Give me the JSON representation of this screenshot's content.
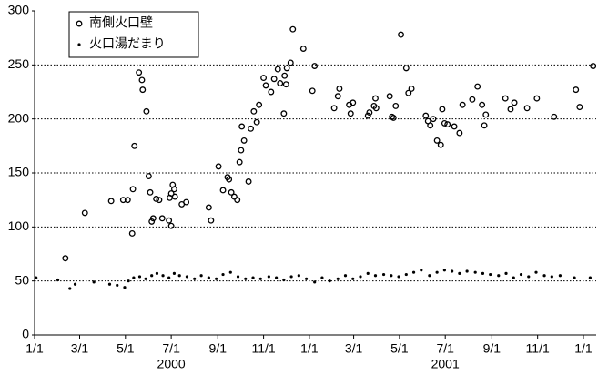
{
  "chart_data": {
    "type": "scatter",
    "xlim": [
      "2000-01-01",
      "2002-01-18"
    ],
    "ylim": [
      0,
      300
    ],
    "yticks": [
      0,
      50,
      100,
      150,
      200,
      250,
      300
    ],
    "xticks": [
      {
        "value": "2000-01-01",
        "label": "1/1"
      },
      {
        "value": "2000-03-01",
        "label": "3/1"
      },
      {
        "value": "2000-05-01",
        "label": "5/1"
      },
      {
        "value": "2000-07-01",
        "label": "7/1"
      },
      {
        "value": "2000-09-01",
        "label": "9/1"
      },
      {
        "value": "2000-11-01",
        "label": "11/1"
      },
      {
        "value": "2001-01-01",
        "label": "1/1"
      },
      {
        "value": "2001-03-01",
        "label": "3/1"
      },
      {
        "value": "2001-05-01",
        "label": "5/1"
      },
      {
        "value": "2001-07-01",
        "label": "7/1"
      },
      {
        "value": "2001-09-01",
        "label": "9/1"
      },
      {
        "value": "2001-11-01",
        "label": "11/1"
      },
      {
        "value": "2002-01-01",
        "label": "1/1"
      }
    ],
    "x_group_labels": [
      {
        "value": "2000-07-01",
        "label": "2000"
      },
      {
        "value": "2001-07-01",
        "label": "2001"
      }
    ],
    "grid": true,
    "legend": "top-left",
    "series": [
      {
        "name": "南側火口壁",
        "color": "#000000",
        "marker": "open-circle",
        "x": [
          "2000-02-11",
          "2000-03-08",
          "2000-04-12",
          "2000-04-28",
          "2000-05-04",
          "2000-05-11",
          "2000-05-10",
          "2000-05-13",
          "2000-05-19",
          "2000-05-23",
          "2000-05-24",
          "2000-05-29",
          "2000-06-01",
          "2000-06-03",
          "2000-06-05",
          "2000-06-07",
          "2000-06-11",
          "2000-06-15",
          "2000-06-19",
          "2000-06-28",
          "2000-07-01",
          "2000-06-29",
          "2000-07-01",
          "2000-07-03",
          "2000-07-05",
          "2000-07-06",
          "2000-07-15",
          "2000-07-21",
          "2000-08-20",
          "2000-08-23",
          "2000-09-02",
          "2000-09-08",
          "2000-09-14",
          "2000-09-16",
          "2000-09-19",
          "2000-09-23",
          "2000-09-27",
          "2000-09-30",
          "2000-10-02",
          "2000-10-03",
          "2000-10-06",
          "2000-10-12",
          "2000-10-15",
          "2000-10-19",
          "2000-10-23",
          "2000-10-26",
          "2000-11-01",
          "2000-11-04",
          "2000-11-11",
          "2000-11-15",
          "2000-11-20",
          "2000-11-23",
          "2000-11-28",
          "2000-11-29",
          "2000-12-01",
          "2000-12-02",
          "2000-12-07",
          "2000-12-10",
          "2000-12-24",
          "2001-01-05",
          "2001-01-08",
          "2001-02-03",
          "2001-02-08",
          "2001-02-10",
          "2001-02-23",
          "2001-02-25",
          "2001-02-28",
          "2001-03-20",
          "2001-03-22",
          "2001-03-28",
          "2001-03-30",
          "2001-03-31",
          "2001-04-18",
          "2001-04-21",
          "2001-04-23",
          "2001-04-26",
          "2001-05-03",
          "2001-05-10",
          "2001-05-13",
          "2001-05-17",
          "2001-06-05",
          "2001-06-08",
          "2001-06-11",
          "2001-06-15",
          "2001-06-20",
          "2001-06-25",
          "2001-06-27",
          "2001-06-30",
          "2001-07-04",
          "2001-07-13",
          "2001-07-20",
          "2001-07-24",
          "2001-08-06",
          "2001-08-13",
          "2001-08-19",
          "2001-08-22",
          "2001-08-24",
          "2001-09-19",
          "2001-09-26",
          "2001-10-01",
          "2001-10-18",
          "2001-10-31",
          "2001-11-23",
          "2001-12-22",
          "2001-12-27",
          "2002-01-14"
        ],
        "values": [
          71,
          113,
          124,
          125,
          125,
          135,
          94,
          175,
          243,
          236,
          227,
          207,
          147,
          132,
          105,
          108,
          126,
          125,
          108,
          106,
          101,
          127,
          131,
          139,
          135,
          128,
          121,
          123,
          118,
          106,
          156,
          134,
          146,
          144,
          132,
          128,
          125,
          160,
          171,
          193,
          180,
          142,
          191,
          207,
          197,
          213,
          238,
          231,
          225,
          237,
          246,
          233,
          205,
          240,
          232,
          247,
          252,
          283,
          265,
          226,
          249,
          210,
          221,
          228,
          213,
          205,
          215,
          203,
          206,
          212,
          219,
          210,
          221,
          202,
          201,
          212,
          278,
          247,
          224,
          228,
          203,
          198,
          194,
          200,
          180,
          176,
          209,
          196,
          195,
          193,
          187,
          213,
          218,
          230,
          213,
          194,
          204,
          219,
          209,
          215,
          210,
          219,
          202,
          227,
          211,
          249
        ]
      },
      {
        "name": "火口湯だまり",
        "color": "#000000",
        "marker": "dot",
        "x": [
          "2000-01-03",
          "2000-02-01",
          "2000-02-17",
          "2000-02-24",
          "2000-03-20",
          "2000-04-10",
          "2000-04-20",
          "2000-04-30",
          "2000-05-05",
          "2000-05-12",
          "2000-05-20",
          "2000-05-28",
          "2000-06-05",
          "2000-06-12",
          "2000-06-20",
          "2000-06-28",
          "2000-07-05",
          "2000-07-12",
          "2000-07-22",
          "2000-08-01",
          "2000-08-10",
          "2000-08-20",
          "2000-08-30",
          "2000-09-08",
          "2000-09-18",
          "2000-09-28",
          "2000-10-08",
          "2000-10-18",
          "2000-10-28",
          "2000-11-08",
          "2000-11-18",
          "2000-11-28",
          "2000-12-08",
          "2000-12-18",
          "2000-12-28",
          "2001-01-08",
          "2001-01-18",
          "2001-01-28",
          "2001-02-08",
          "2001-02-18",
          "2001-02-28",
          "2001-03-10",
          "2001-03-20",
          "2001-03-30",
          "2001-04-10",
          "2001-04-20",
          "2001-04-30",
          "2001-05-10",
          "2001-05-20",
          "2001-05-30",
          "2001-06-10",
          "2001-06-20",
          "2001-06-30",
          "2001-07-10",
          "2001-07-20",
          "2001-07-30",
          "2001-08-10",
          "2001-08-20",
          "2001-08-30",
          "2001-09-10",
          "2001-09-20",
          "2001-09-30",
          "2001-10-10",
          "2001-10-20",
          "2001-10-30",
          "2001-11-10",
          "2001-11-20",
          "2001-12-01",
          "2001-12-20",
          "2002-01-10"
        ],
        "values": [
          53,
          51,
          43,
          47,
          49,
          47,
          46,
          44,
          50,
          53,
          54,
          52,
          55,
          57,
          55,
          53,
          57,
          55,
          54,
          52,
          55,
          53,
          52,
          56,
          58,
          54,
          52,
          53,
          52,
          54,
          53,
          51,
          54,
          55,
          52,
          49,
          53,
          50,
          52,
          55,
          52,
          54,
          57,
          55,
          56,
          55,
          54,
          56,
          58,
          60,
          55,
          58,
          60,
          59,
          57,
          59,
          58,
          57,
          56,
          55,
          57,
          53,
          56,
          54,
          58,
          55,
          54,
          55,
          53,
          53
        ]
      }
    ]
  }
}
